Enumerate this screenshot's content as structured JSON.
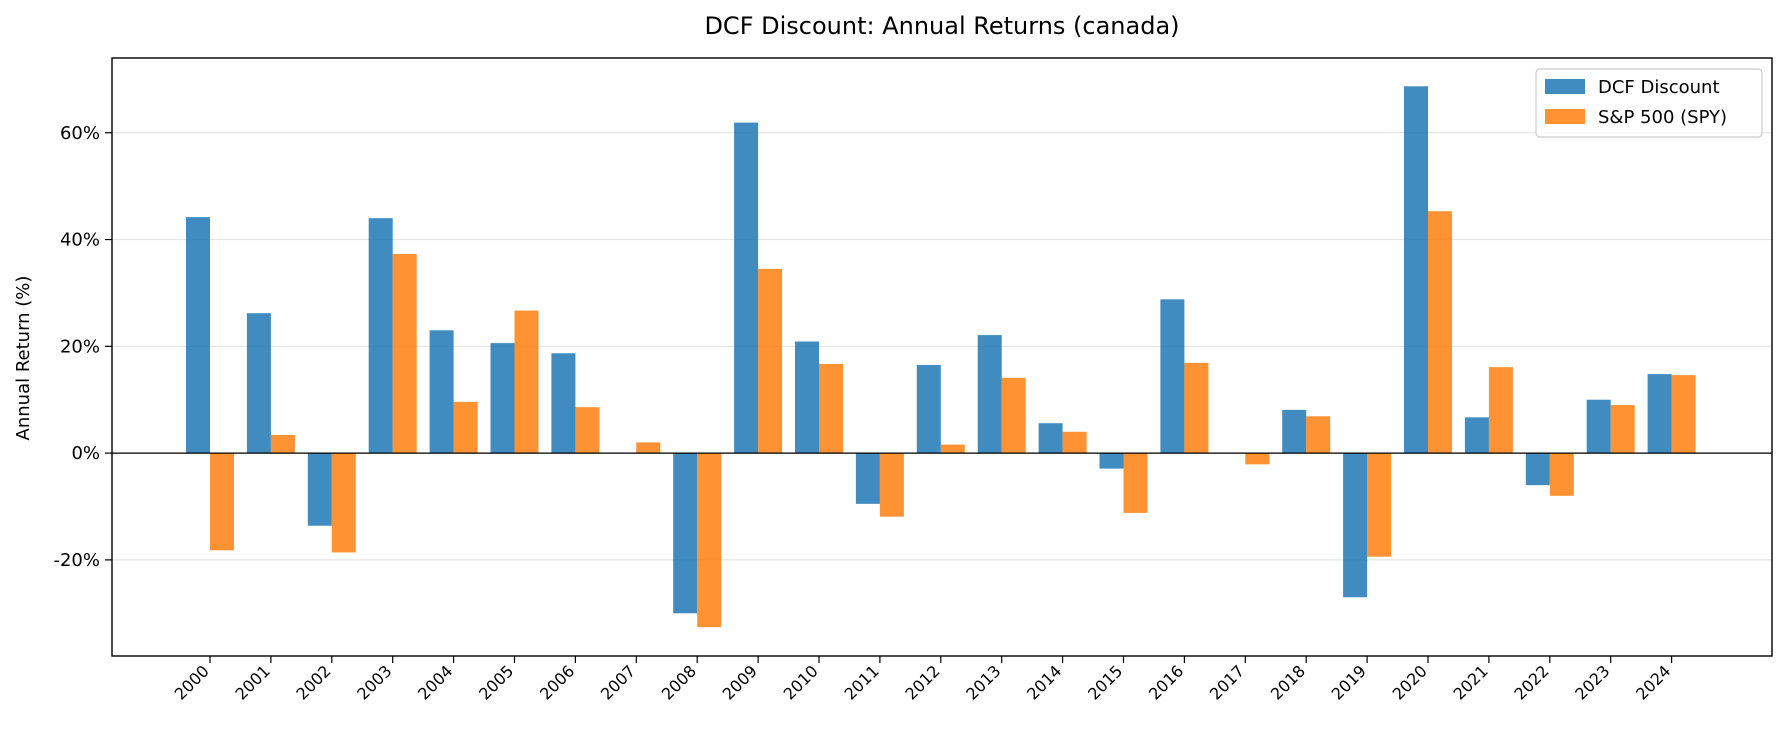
{
  "chart_data": {
    "type": "bar",
    "title": "DCF Discount: Annual Returns (canada)",
    "xlabel": "",
    "ylabel": "Annual Return (%)",
    "ylim": [
      -38,
      74
    ],
    "yticks": [
      -20,
      0,
      20,
      40,
      60
    ],
    "ytick_labels": [
      "-20%",
      "0%",
      "20%",
      "40%",
      "60%"
    ],
    "grid": "horizontal",
    "legend_position": "top-right",
    "categories": [
      "2000",
      "2001",
      "2002",
      "2003",
      "2004",
      "2005",
      "2006",
      "2007",
      "2008",
      "2009",
      "2010",
      "2011",
      "2012",
      "2013",
      "2014",
      "2015",
      "2016",
      "2017",
      "2018",
      "2019",
      "2020",
      "2021",
      "2022",
      "2023",
      "2024"
    ],
    "series": [
      {
        "name": "DCF Discount",
        "color": "#1f77b4",
        "values": [
          44.2,
          26.2,
          -13.6,
          44.0,
          23.0,
          20.6,
          18.7,
          null,
          -30.0,
          61.9,
          20.9,
          -9.5,
          16.5,
          22.1,
          5.6,
          -2.9,
          28.8,
          null,
          8.1,
          -27.0,
          68.7,
          6.7,
          -6.0,
          10.0,
          14.8
        ]
      },
      {
        "name": "S&P 500 (SPY)",
        "color": "#ff7f0e",
        "values": [
          -18.2,
          3.4,
          -18.6,
          37.3,
          9.6,
          26.7,
          8.6,
          2.0,
          -32.6,
          34.5,
          16.7,
          -11.9,
          1.6,
          14.1,
          4.0,
          -11.2,
          16.9,
          -2.1,
          6.9,
          -19.4,
          45.3,
          16.1,
          -8.0,
          9.0,
          14.6
        ]
      }
    ]
  }
}
